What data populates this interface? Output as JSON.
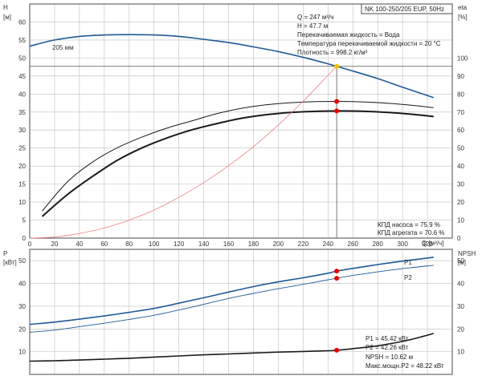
{
  "title": "NK 100-250/205 EUP, 50Hz",
  "colors": {
    "grid": "#bdbdbd",
    "frame": "#4a4a4a",
    "head": "#1f5a96",
    "power": "#1f5a96",
    "efficiency": "#1a1a1a",
    "npsh": "#1a1a1a",
    "system": "#f08080",
    "marker": "#e60000",
    "op_marker": "#f2c200",
    "op_line": "#555555"
  },
  "info_top": [
    "Q = 247 м³/ч",
    "H = 47.7 м",
    "Перекачиваемая жидкость = Вода",
    "Температура перекачиваемой жидкости = 20 °C",
    "Плотность = 998.2 кг/м³"
  ],
  "info_eff": [
    "КПД насоса = 75.9 %",
    "КПД агрегата = 70.6 %"
  ],
  "info_bottom": [
    "P1 = 45.42 кВт",
    "P2 = 42.26 кВт",
    "NPSH = 10.62 м",
    "Макс.мощн.P2 = 48.22 кВт"
  ],
  "chart_data": [
    {
      "type": "line",
      "panel": "top",
      "ylabel": "H [м]",
      "y2label": "eta [%]",
      "xlabel": "Q [м³/ч]",
      "xlim": [
        0,
        340
      ],
      "ylim": [
        0,
        65
      ],
      "y2lim": [
        0,
        130
      ],
      "x_ticks": [
        0,
        20,
        40,
        60,
        80,
        100,
        120,
        140,
        160,
        180,
        200,
        220,
        240,
        260,
        280,
        300,
        320
      ],
      "y_ticks": [
        0,
        5,
        10,
        15,
        20,
        25,
        30,
        35,
        40,
        45,
        50,
        55,
        60
      ],
      "y2_ticks": [
        0,
        10,
        20,
        30,
        40,
        50,
        60,
        70,
        80,
        90,
        100
      ],
      "curve_label": "205 мм",
      "series": [
        {
          "key": "head",
          "axis": "left",
          "x": [
            0,
            20,
            40,
            60,
            80,
            100,
            120,
            140,
            160,
            180,
            200,
            220,
            240,
            260,
            280,
            300,
            325
          ],
          "y": [
            53.3,
            55.0,
            56.0,
            56.4,
            56.5,
            56.4,
            56.0,
            55.2,
            54.3,
            53.1,
            51.8,
            50.2,
            48.4,
            46.4,
            44.3,
            41.9,
            39.0
          ]
        },
        {
          "key": "pump_eff",
          "axis": "right",
          "x": [
            10,
            30,
            50,
            70,
            90,
            110,
            130,
            150,
            170,
            190,
            210,
            230,
            250,
            270,
            290,
            310,
            325
          ],
          "y": [
            15,
            31,
            42,
            50,
            56,
            61,
            65,
            69,
            72,
            74,
            75.2,
            75.8,
            75.9,
            75.6,
            74.8,
            73.6,
            72.4
          ]
        },
        {
          "key": "unit_eff",
          "axis": "right",
          "x": [
            10,
            30,
            50,
            70,
            90,
            110,
            130,
            150,
            170,
            190,
            210,
            230,
            250,
            270,
            290,
            310,
            325
          ],
          "y": [
            12,
            24,
            34,
            43,
            50,
            55.5,
            60,
            63.5,
            66.5,
            68.5,
            69.8,
            70.4,
            70.6,
            70.4,
            69.7,
            68.6,
            67.5
          ]
        },
        {
          "key": "system",
          "axis": "left",
          "x": [
            0,
            20,
            40,
            60,
            80,
            100,
            120,
            140,
            160,
            180,
            200,
            220,
            240,
            247
          ],
          "y": [
            0,
            0.3,
            1.3,
            2.8,
            5.0,
            7.8,
            11.3,
            15.4,
            20.1,
            25.4,
            31.4,
            38.0,
            45.2,
            47.7
          ]
        }
      ],
      "markers": [
        {
          "x": 247,
          "y": 47.7,
          "axis": "left",
          "kind": "op"
        },
        {
          "x": 247,
          "y": 75.9,
          "axis": "right",
          "kind": "dot"
        },
        {
          "x": 247,
          "y": 70.6,
          "axis": "right",
          "kind": "dot"
        }
      ]
    },
    {
      "type": "line",
      "panel": "bottom",
      "ylabel": "P [кВт]",
      "y2label": "NPSH [м]",
      "xlim": [
        0,
        340
      ],
      "ylim": [
        0,
        55
      ],
      "y2lim": [
        0,
        55
      ],
      "y_ticks": [
        10,
        20,
        30,
        40,
        50
      ],
      "y2_ticks": [
        10,
        20,
        30,
        40,
        50
      ],
      "series": [
        {
          "key": "p1",
          "name": "P1",
          "axis": "left",
          "x": [
            0,
            20,
            40,
            60,
            80,
            100,
            120,
            140,
            160,
            180,
            200,
            220,
            240,
            247,
            260,
            280,
            300,
            325
          ],
          "y": [
            22.0,
            23.0,
            24.3,
            25.7,
            27.3,
            29.0,
            31.3,
            33.7,
            36.2,
            38.6,
            40.7,
            42.5,
            44.5,
            45.42,
            46.6,
            48.3,
            49.8,
            51.5
          ]
        },
        {
          "key": "p2",
          "name": "P2",
          "axis": "left",
          "x": [
            0,
            20,
            40,
            60,
            80,
            100,
            120,
            140,
            160,
            180,
            200,
            220,
            240,
            247,
            260,
            280,
            300,
            325
          ],
          "y": [
            18.5,
            19.5,
            21.0,
            22.5,
            24.2,
            26.0,
            28.3,
            30.8,
            33.4,
            35.6,
            37.7,
            39.6,
            41.6,
            42.26,
            43.5,
            45.1,
            46.5,
            48.0
          ]
        },
        {
          "key": "npsh",
          "axis": "right",
          "x": [
            0,
            20,
            40,
            60,
            80,
            100,
            120,
            140,
            160,
            180,
            200,
            220,
            240,
            247,
            260,
            280,
            300,
            315,
            325
          ],
          "y": [
            5.8,
            6.0,
            6.3,
            6.7,
            7.1,
            7.6,
            8.1,
            8.6,
            9.0,
            9.4,
            9.8,
            10.1,
            10.4,
            10.62,
            11.3,
            12.6,
            14.5,
            16.5,
            18.0
          ]
        }
      ],
      "markers": [
        {
          "x": 247,
          "y": 45.42,
          "axis": "left",
          "kind": "dot"
        },
        {
          "x": 247,
          "y": 42.26,
          "axis": "left",
          "kind": "dot"
        },
        {
          "x": 247,
          "y": 10.62,
          "axis": "right",
          "kind": "dot"
        }
      ]
    }
  ]
}
